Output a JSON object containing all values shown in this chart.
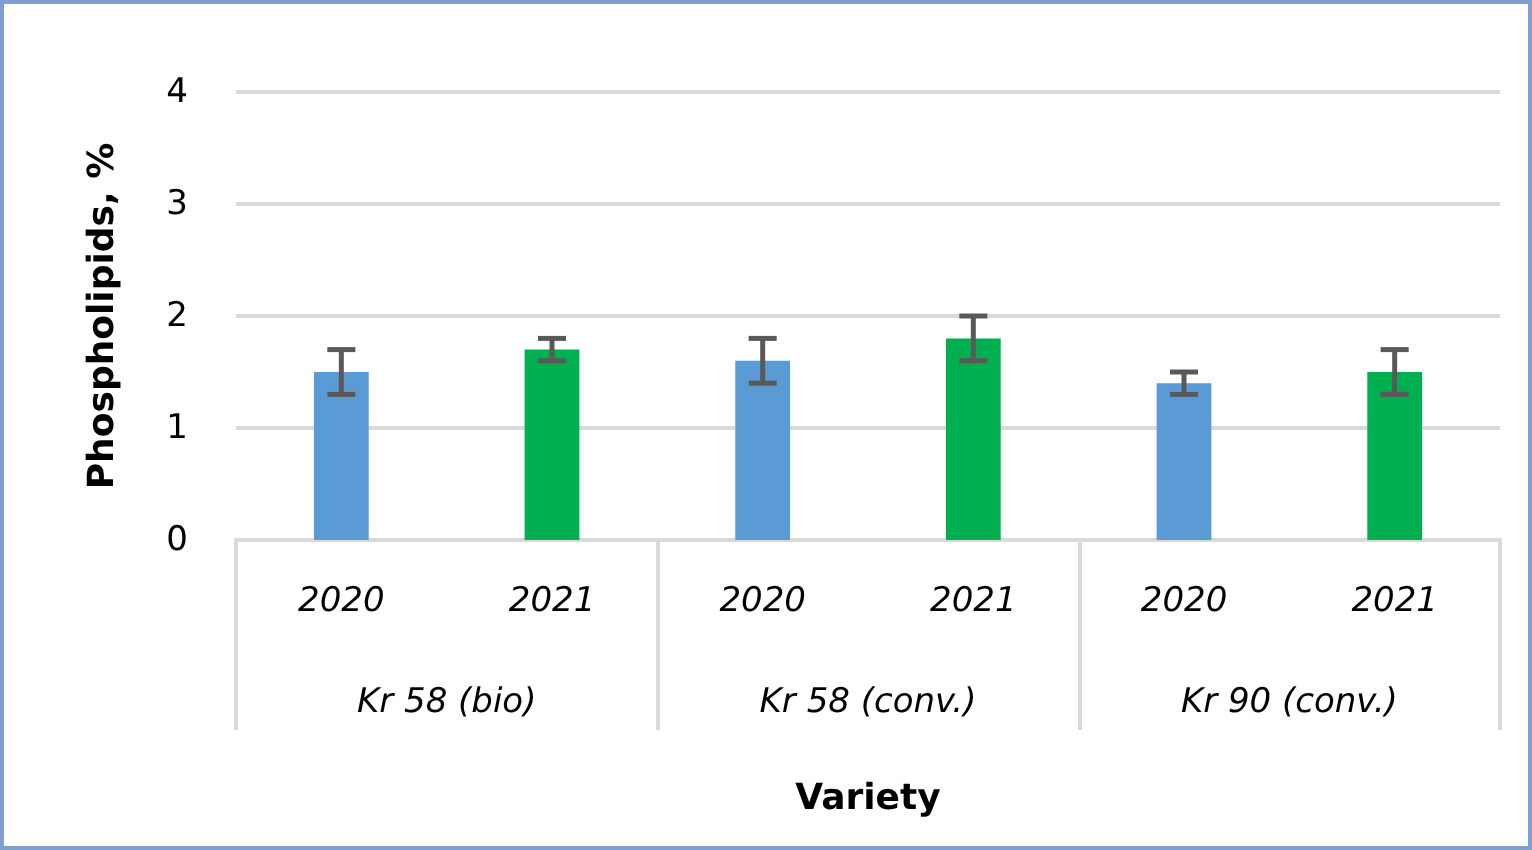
{
  "chart_data": {
    "type": "bar",
    "xlabel": "Variety",
    "ylabel": "Phospholipids, %",
    "categories": [
      "2020",
      "2021",
      "2020",
      "2021",
      "2020",
      "2021"
    ],
    "values": [
      1.5,
      1.7,
      1.6,
      1.8,
      1.4,
      1.5
    ],
    "errors": [
      0.2,
      0.1,
      0.2,
      0.2,
      0.1,
      0.2
    ],
    "colors": [
      "#5b9bd5",
      "#00b050",
      "#5b9bd5",
      "#00b050",
      "#5b9bd5",
      "#00b050"
    ],
    "annotations": [
      "Kr 58 (bio)",
      "Kr 58 (conv.)",
      "Kr 90 (conv.)"
    ],
    "ylim": [
      0,
      4
    ],
    "yticks": [
      0,
      1,
      2,
      3,
      4
    ],
    "grid": "y"
  }
}
